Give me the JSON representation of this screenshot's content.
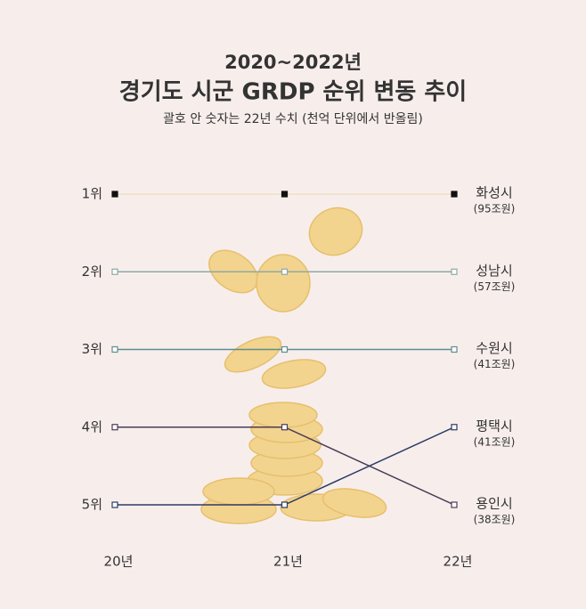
{
  "chart_data": {
    "type": "line",
    "title": "2020~2022년",
    "subtitle": "경기도 시군 GRDP 순위 변동 추이",
    "caption": "괄호 안 숫자는 22년 수치 (천억 단위에서 반올림)",
    "categories": [
      "20년",
      "21년",
      "22년"
    ],
    "ylim": [
      1,
      5
    ],
    "inverted": true,
    "yticks": [
      {
        "value": 1,
        "label": "1위"
      },
      {
        "value": 2,
        "label": "2위"
      },
      {
        "value": 3,
        "label": "3위"
      },
      {
        "value": 4,
        "label": "4위"
      },
      {
        "value": 5,
        "label": "5위"
      }
    ],
    "series": [
      {
        "name": "화성시",
        "note": "(95조원)",
        "color": "#efe0c2",
        "marker": "#111111",
        "values": [
          1,
          1,
          1
        ]
      },
      {
        "name": "성남시",
        "note": "(57조원)",
        "color": "#8fa9a3",
        "marker": "#8fa9a3",
        "values": [
          2,
          2,
          2
        ]
      },
      {
        "name": "수원시",
        "note": "(41조원)",
        "color": "#5f8e8e",
        "marker": "#5f8e8e",
        "values": [
          3,
          3,
          3
        ]
      },
      {
        "name": "평택시",
        "note": "(41조원)",
        "color": "#2c3b66",
        "marker": "#2c3b66",
        "values": [
          5,
          5,
          4
        ]
      },
      {
        "name": "용인시",
        "note": "(38조원)",
        "color": "#4b3c58",
        "marker": "#4b3c58",
        "values": [
          4,
          4,
          5
        ]
      }
    ]
  }
}
